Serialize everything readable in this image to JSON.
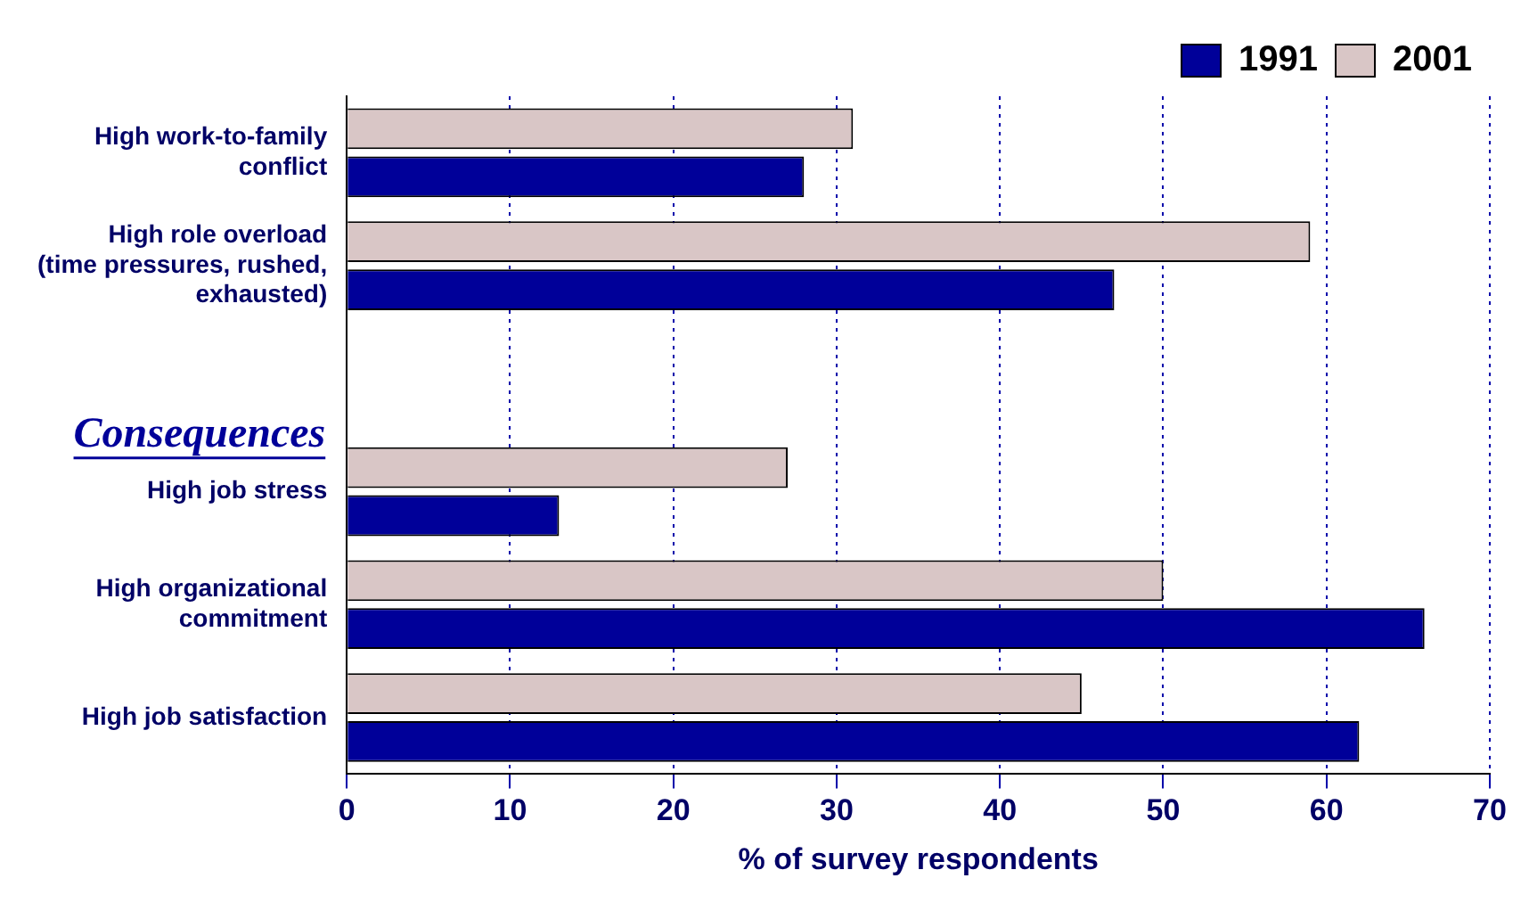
{
  "chart_data": {
    "type": "bar",
    "orientation": "horizontal",
    "categories": [
      "High work-to-family conflict",
      "High role overload (time pressures, rushed, exhausted)",
      null,
      "High job stress",
      "High organizational commitment",
      "High job satisfaction"
    ],
    "series": [
      {
        "name": "1991",
        "color": "#000099",
        "values": [
          28,
          47,
          null,
          13,
          66,
          62
        ]
      },
      {
        "name": "2001",
        "color": "#d9c6c6",
        "values": [
          31,
          59,
          null,
          27,
          50,
          45
        ]
      }
    ],
    "xlabel": "% of survey respondents",
    "xlim": [
      0,
      70
    ],
    "xticks": [
      0,
      10,
      20,
      30,
      40,
      50,
      60,
      70
    ],
    "grid": "x",
    "legend": "top right",
    "annotations": [
      "Consequences"
    ]
  }
}
